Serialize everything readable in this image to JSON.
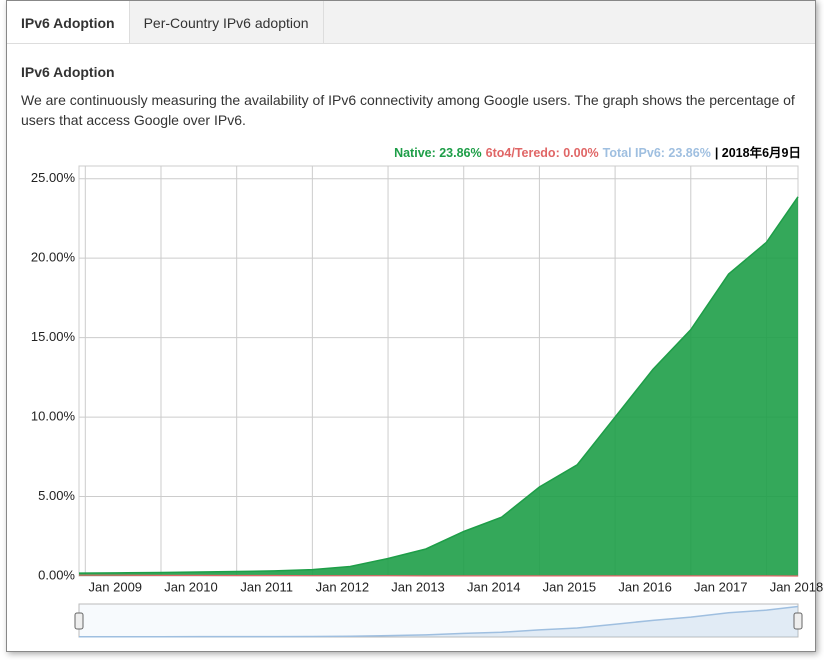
{
  "tabs": [
    "IPv6 Adoption",
    "Per-Country IPv6 adoption"
  ],
  "heading": "IPv6 Adoption",
  "description": "We are continuously measuring the availability of IPv6 connectivity among Google users. The graph shows the percentage of users that access Google over IPv6.",
  "legend": [
    {
      "text": "Native: 23.86%",
      "color": "#1e9e48"
    },
    {
      "text": "6to4/Teredo: 0.00%",
      "color": "#e06666"
    },
    {
      "text": "Total IPv6: 23.86%",
      "color": "#9fbfe0"
    },
    {
      "text": "| 2018年6月9日",
      "color": "#000000"
    }
  ],
  "chart_data": {
    "type": "area",
    "x": [
      "2008-12",
      "2009-06",
      "2010-01",
      "2010-07",
      "2011-01",
      "2011-07",
      "2012-01",
      "2012-07",
      "2013-01",
      "2013-07",
      "2014-01",
      "2014-07",
      "2015-01",
      "2015-07",
      "2016-01",
      "2016-07",
      "2017-01",
      "2017-07",
      "2018-01",
      "2018-06"
    ],
    "series": [
      {
        "name": "Native",
        "color": "#1e9e48",
        "values": [
          0.18,
          0.2,
          0.22,
          0.25,
          0.28,
          0.32,
          0.4,
          0.6,
          1.1,
          1.7,
          2.8,
          3.7,
          5.6,
          7.0,
          10.0,
          13.0,
          15.5,
          19.0,
          21.0,
          23.86
        ]
      },
      {
        "name": "6to4/Teredo",
        "color": "#e06666",
        "values": [
          0.05,
          0.05,
          0.04,
          0.04,
          0.03,
          0.03,
          0.02,
          0.02,
          0.02,
          0.01,
          0.01,
          0.01,
          0.01,
          0.01,
          0.01,
          0.01,
          0.01,
          0.01,
          0.01,
          0
        ]
      }
    ],
    "xlim": [
      "2008-12",
      "2018-06"
    ],
    "xticks": [
      {
        "value": "2009-01",
        "label": "Jan 2009"
      },
      {
        "value": "2010-01",
        "label": "Jan 2010"
      },
      {
        "value": "2011-01",
        "label": "Jan 2011"
      },
      {
        "value": "2012-01",
        "label": "Jan 2012"
      },
      {
        "value": "2013-01",
        "label": "Jan 2013"
      },
      {
        "value": "2014-01",
        "label": "Jan 2014"
      },
      {
        "value": "2015-01",
        "label": "Jan 2015"
      },
      {
        "value": "2016-01",
        "label": "Jan 2016"
      },
      {
        "value": "2017-01",
        "label": "Jan 2017"
      },
      {
        "value": "2018-01",
        "label": "Jan 2018"
      }
    ],
    "ylim": [
      0,
      25.8
    ],
    "yticks": [
      {
        "value": 0,
        "label": "0.00%"
      },
      {
        "value": 5,
        "label": "5.00%"
      },
      {
        "value": 10,
        "label": "10.00%"
      },
      {
        "value": 15,
        "label": "15.00%"
      },
      {
        "value": 20,
        "label": "20.00%"
      },
      {
        "value": 25,
        "label": "25.00%"
      }
    ],
    "grid": true
  }
}
